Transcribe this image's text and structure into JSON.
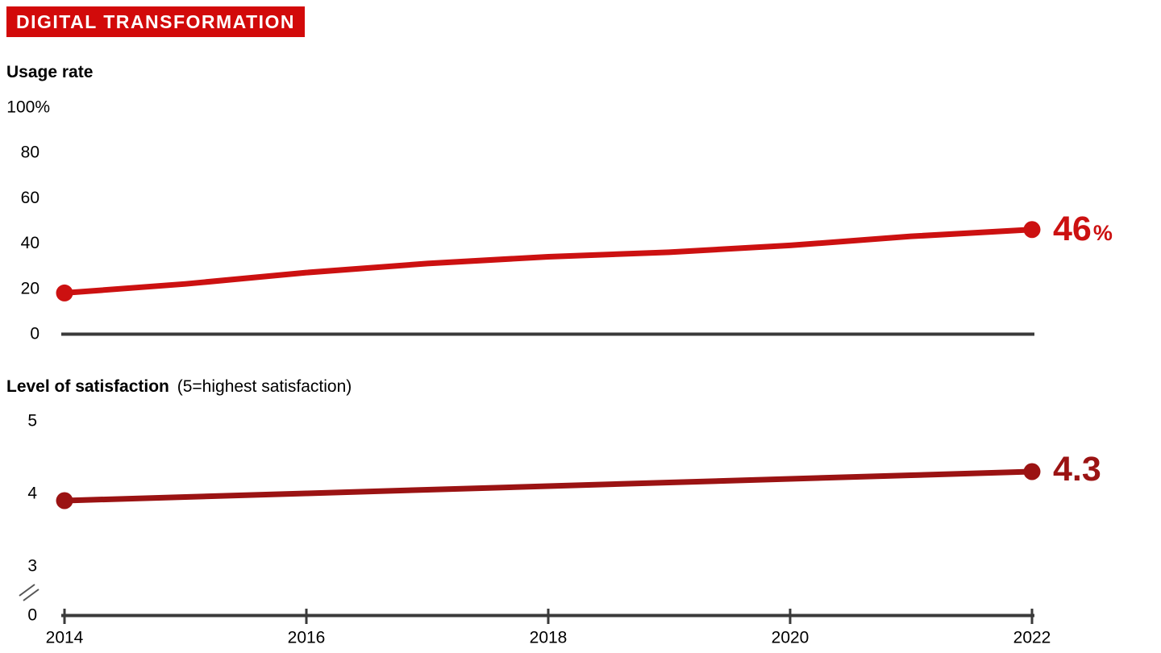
{
  "banner": {
    "title": "DIGITAL TRANSFORMATION"
  },
  "colors": {
    "banner_red": "#d20a0a",
    "usage_line_red": "#cc1111",
    "satisfaction_line_red": "#9b1313",
    "axis_gray": "#3a3a3a",
    "break_gray": "#555555",
    "text_black": "#000000"
  },
  "charts": {
    "usage": {
      "title": "Usage rate",
      "y_tick_labels": [
        "100%",
        "80",
        "60",
        "40",
        "20",
        "0"
      ],
      "end_value_label": {
        "value": "46",
        "unit": "%"
      }
    },
    "satisfaction": {
      "title_bold": "Level of satisfaction",
      "title_note": "(5=highest satisfaction)",
      "y_tick_labels": [
        "5",
        "4",
        "3"
      ],
      "y_zero_label": "0",
      "end_value_label": "4.3"
    }
  },
  "x_axis": {
    "tick_labels": [
      "2014",
      "2016",
      "2018",
      "2020",
      "2022"
    ]
  },
  "chart_data": [
    {
      "type": "line",
      "title": "Usage rate",
      "ylabel": "Usage rate (%)",
      "x": [
        2014,
        2015,
        2016,
        2017,
        2018,
        2019,
        2020,
        2021,
        2022
      ],
      "values": [
        18,
        22,
        27,
        31,
        34,
        36,
        39,
        43,
        46
      ],
      "ylim": [
        0,
        100
      ],
      "yticks": [
        0,
        20,
        40,
        60,
        80,
        100
      ],
      "xticks": [
        2014,
        2016,
        2018,
        2020,
        2022
      ],
      "start_value": 18,
      "end_value": 46,
      "end_label": "46%",
      "line_color": "#cc1111",
      "grid": false,
      "note": "Intermediate yearly values estimated from line position; endpoints marked with dots, end labeled 46%."
    },
    {
      "type": "line",
      "title": "Level of satisfaction",
      "subtitle": "(5=highest satisfaction)",
      "x": [
        2014,
        2015,
        2016,
        2017,
        2018,
        2019,
        2020,
        2021,
        2022
      ],
      "values": [
        3.9,
        3.95,
        4.0,
        4.05,
        4.1,
        4.15,
        4.2,
        4.25,
        4.3
      ],
      "ylim": [
        0,
        5
      ],
      "yticks": [
        0,
        3,
        4,
        5
      ],
      "axis_break_between": [
        0,
        3
      ],
      "xticks": [
        2014,
        2016,
        2018,
        2020,
        2022
      ],
      "start_value": 3.9,
      "end_value": 4.3,
      "end_label": "4.3",
      "line_color": "#9b1313",
      "grid": false,
      "note": "Intermediate yearly values estimated (near-linear rise); endpoints marked with dots, end labeled 4.3."
    }
  ]
}
